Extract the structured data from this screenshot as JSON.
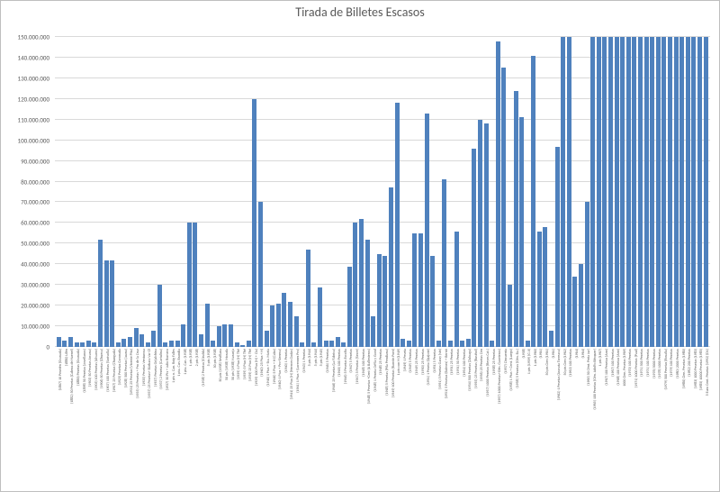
{
  "chart": {
    "type": "bar",
    "title": "Tirada de Billetes Escasos",
    "title_fontsize": 14,
    "title_color": "#595959",
    "background_color": "#ffffff",
    "plot_border_color": "#bfbfbf",
    "bar_color": "#4f81bd",
    "grid_color": "#d9d9d9",
    "axis_font_color": "#595959",
    "y_axis": {
      "min": 0,
      "max": 150000000,
      "step": 10000000,
      "tick_format": "es-thousands",
      "ticks": [
        "0",
        "10.000.000",
        "20.000.000",
        "30.000.000",
        "40.000.000",
        "50.000.000",
        "60.000.000",
        "70.000.000",
        "80.000.000",
        "90.000.000",
        "100.000.000",
        "110.000.000",
        "120.000.000",
        "130.000.000",
        "140.000.000",
        "150.000.000"
      ]
    },
    "series": [
      {
        "label": "(1867) 10 Pesetén (Granada)",
        "value": 5000000
      },
      {
        "label": "(1880) Lilén",
        "value": 3000000
      },
      {
        "label": "(1882) 50 Pesetas (Cabeza de Haenel)",
        "value": 5000000
      },
      {
        "label": "(1886) Pesetas (Granada)",
        "value": 2000000
      },
      {
        "label": "(1898) 50 Pesetas (Jovellanos)",
        "value": 2000000
      },
      {
        "label": "(1903) 50 Pesetas Arcana)",
        "value": 3000000
      },
      {
        "label": "(1905) 100 Pesetas (Alvarez)",
        "value": 2000000
      },
      {
        "label": "(1906) 50 Pesetas (Chueca)",
        "value": 52000000
      },
      {
        "label": "(1907) 100 Pesetas (Sorisolla)",
        "value": 42000000
      },
      {
        "label": "(1907) 25 Pesetas (Chungada)",
        "value": 42000000
      },
      {
        "label": "(1925) Pesetas Coronada",
        "value": 2000000
      },
      {
        "label": "(1928) 500 Pesetas (Juana)",
        "value": 4000000
      },
      {
        "label": "(1931) 25 Pesetas (Vicente Pita)",
        "value": 5000000
      },
      {
        "label": "(1935) 25 Pesetas + Pro de la Cruz",
        "value": 9000000
      },
      {
        "label": "(1935) Pesetas Venturosa",
        "value": 6000000
      },
      {
        "label": "(1937) 25 Pesetas+ Bárbara Var Gl",
        "value": 2000000
      },
      {
        "label": "(1937) Pesetas Grijalchina",
        "value": 8000000
      },
      {
        "label": "(1937) 2 Pesetas (Cartulina)",
        "value": 30000000
      },
      {
        "label": "(1937) 50 Pts + Julio Romero",
        "value": 2000000
      },
      {
        "label": "1 pts n. Can. Roig Falles",
        "value": 3000000
      },
      {
        "label": "1 pta. Can. Brandia",
        "value": 3000000
      },
      {
        "label": "1 pta. Can. (1938)",
        "value": 11000000
      },
      {
        "label": "1 pts (1938)",
        "value": 60000000
      },
      {
        "label": "2 pts (1938)",
        "value": 60000000
      },
      {
        "label": "(1938) 2 Pesetas (Giralda)",
        "value": 6000000
      },
      {
        "label": "5 pts (1938)",
        "value": 21000000
      },
      {
        "label": "50 pts (1938)",
        "value": 3000000
      },
      {
        "label": "50 pts (1938) Sevillana",
        "value": 10000000
      },
      {
        "label": "50 pts (1938) Morada",
        "value": 11000000
      },
      {
        "label": "50 pts (1938) Naranja",
        "value": 11000000
      },
      {
        "label": "(1939) 1 Ptas (H) Thé",
        "value": 2000000
      },
      {
        "label": "(1939) 5 Ptas (H) Thé",
        "value": 1000000
      },
      {
        "label": "(1939) 25 Ptas (H) Thé",
        "value": 3000000
      },
      {
        "label": "(1939) 100 Ptas (H) + Cía)",
        "value": 120000000
      },
      {
        "label": "(1940) 25 Ptas + H)",
        "value": 70000000
      },
      {
        "label": "(1940) 1 Ptas + Sta. María",
        "value": 8000000
      },
      {
        "label": "(1940) 5 Ptas + H (Cabo)",
        "value": 20000000
      },
      {
        "label": "(1940) 1 Ptas + Pro-Sienma)",
        "value": 21000000
      },
      {
        "label": "(1940) 1 Pesetas",
        "value": 26000000
      },
      {
        "label": "(1941) 25 Ptas (H) (Hermes Godas)",
        "value": 22000000
      },
      {
        "label": "(1941) 1 Ptas + (Lorennes Pro)",
        "value": 15000000
      },
      {
        "label": "(1943) 1 Pesetas",
        "value": 2000000
      },
      {
        "label": "5 pts (1944)",
        "value": 47000000
      },
      {
        "label": "5 pts (1944)",
        "value": 2000000
      },
      {
        "label": "5 pts (1945)",
        "value": 29000000
      },
      {
        "label": "(1946) 5 Pesetas",
        "value": 3000000
      },
      {
        "label": "(1946) 25 Pesetas (La Fábrica)",
        "value": 3000000
      },
      {
        "label": "(1946) 100 Pesetas",
        "value": 5000000
      },
      {
        "label": "(1946) 5 Pesetas Escolta",
        "value": 2000000
      },
      {
        "label": "(1947) 5 Pesetas",
        "value": 39000000
      },
      {
        "label": "(1947) 5 Pesetas (Secre)",
        "value": 60000000
      },
      {
        "label": "(1948) 100 Pesetas",
        "value": 62000000
      },
      {
        "label": "(1948) 5 Pesetas +Cent (A Ballesteros)",
        "value": 52000000
      },
      {
        "label": "(1948) 1 Peseta Orfila y Gorol",
        "value": 15000000
      },
      {
        "label": "(1948) 25 Pesetas",
        "value": 45000000
      },
      {
        "label": "(1948) 5 Pesetas (Pila Pendiana)",
        "value": 44000000
      },
      {
        "label": "(1949) 100 Pesetas (Ramón Pont)",
        "value": 77000000
      },
      {
        "label": "1 pts con H (1949)",
        "value": 118000000
      },
      {
        "label": "(1949) 1 Peseta",
        "value": 4000000
      },
      {
        "label": "(1949) 5 Pesetas",
        "value": 3000000
      },
      {
        "label": "(1949) 25 Pesetas",
        "value": 55000000
      },
      {
        "label": "(1950) 25 Pesetas",
        "value": 55000000
      },
      {
        "label": "(1951) 1 Peseta (Quijote)",
        "value": 113000000
      },
      {
        "label": "(1951) 5 Pesetas",
        "value": 44000000
      },
      {
        "label": "(1951) 5 Pesetas Garay (sin)",
        "value": 3000000
      },
      {
        "label": "(1951) 5 Pesetas (Balmes) + Bernó",
        "value": 81000000
      },
      {
        "label": "(1951) 25 Pesetas",
        "value": 3000000
      },
      {
        "label": "(1951) 50 Pesetas",
        "value": 56000000
      },
      {
        "label": "(1954) 100 Pesetas",
        "value": 3000000
      },
      {
        "label": "(1954) 500 Pesetas (Zuloaga)",
        "value": 4000000
      },
      {
        "label": "(1955) 25 Pesetas (Rusiñol)",
        "value": 96000000
      },
      {
        "label": "(1956) 25 Pesetas Cen",
        "value": 110000000
      },
      {
        "label": "(1957) 1000 Pesetas (Reyes Cat.)",
        "value": 108000000
      },
      {
        "label": "(1958) 25 Pesetas",
        "value": 3000000
      },
      {
        "label": "(1957) 1000 Pesetas+Gén. Gaceteros)",
        "value": 148000000
      },
      {
        "label": "(1957) Cincuenta",
        "value": 135000000
      },
      {
        "label": "(1958) 1 Ptas + Cent. (Luego)",
        "value": 30000000
      },
      {
        "label": "(1958) 5 Pesetas (Gén. Ba.)",
        "value": 124000000
      },
      {
        "label": "(1958)",
        "value": 111000000
      },
      {
        "label": "1 pts (1959) (G.II)",
        "value": 3000000
      },
      {
        "label": "1 pts (1960)",
        "value": 141000000
      },
      {
        "label": "(1961)",
        "value": 56000000
      },
      {
        "label": "50 pts Cien (1961)",
        "value": 58000000
      },
      {
        "label": "(1961)",
        "value": 8000000
      },
      {
        "label": "(1962) 1 Pesetas (Aravata Torreaca)",
        "value": 97000000
      },
      {
        "label": "50 pts Cien (1962)",
        "value": 150000000
      },
      {
        "label": "(1963) 100 Pesetas",
        "value": 150000000
      },
      {
        "label": "(1964)",
        "value": 34000000
      },
      {
        "label": "(1964)",
        "value": 40000000
      },
      {
        "label": "(1965) 50 Cént. Peña Jur)",
        "value": 70000000
      },
      {
        "label": "(1965) 100 Pesetas (Gén. Adolfo Bécquer)",
        "value": 150000000
      },
      {
        "label": "1 pts (1967)",
        "value": 150000000
      },
      {
        "label": "(1967) 100 Pesetas (Ann)",
        "value": 150000000
      },
      {
        "label": "(1967) 100 Pesetas",
        "value": 150000000
      },
      {
        "label": "(1968) 100 Pesetas (Ann)",
        "value": 150000000
      },
      {
        "label": "1000 Cien. Pesetas (1969)",
        "value": 150000000
      },
      {
        "label": "(1970) 100 Pesetas",
        "value": 150000000
      },
      {
        "label": "(1971) 1000 Pesetas (Paul)",
        "value": 150000000
      },
      {
        "label": "(1971) 500 Pesetas",
        "value": 150000000
      },
      {
        "label": "(1971) 100 Pesetas",
        "value": 150000000
      },
      {
        "label": "(1976) 5000 Pesetas",
        "value": 150000000
      },
      {
        "label": "(1978) 1000 Pesetas",
        "value": 150000000
      },
      {
        "label": "(1979) 500 Pesetas (Rosalía)",
        "value": 150000000
      },
      {
        "label": "(1979) 100 Pesetas",
        "value": 150000000
      },
      {
        "label": "(1980) 2000 Pesetas",
        "value": 150000000
      },
      {
        "label": "(1980) Cien. Pesetas (1980)",
        "value": 150000000
      },
      {
        "label": "(1982) 200 Pesetas",
        "value": 150000000
      },
      {
        "label": "(1983) 1000 Pesetas (1983)",
        "value": 150000000
      },
      {
        "label": "(1985) 10000 Pesetas (1985)",
        "value": 150000000
      },
      {
        "label": "5 Euro Cent. Pesetas (1992) (D1)",
        "value": 150000000
      }
    ]
  }
}
